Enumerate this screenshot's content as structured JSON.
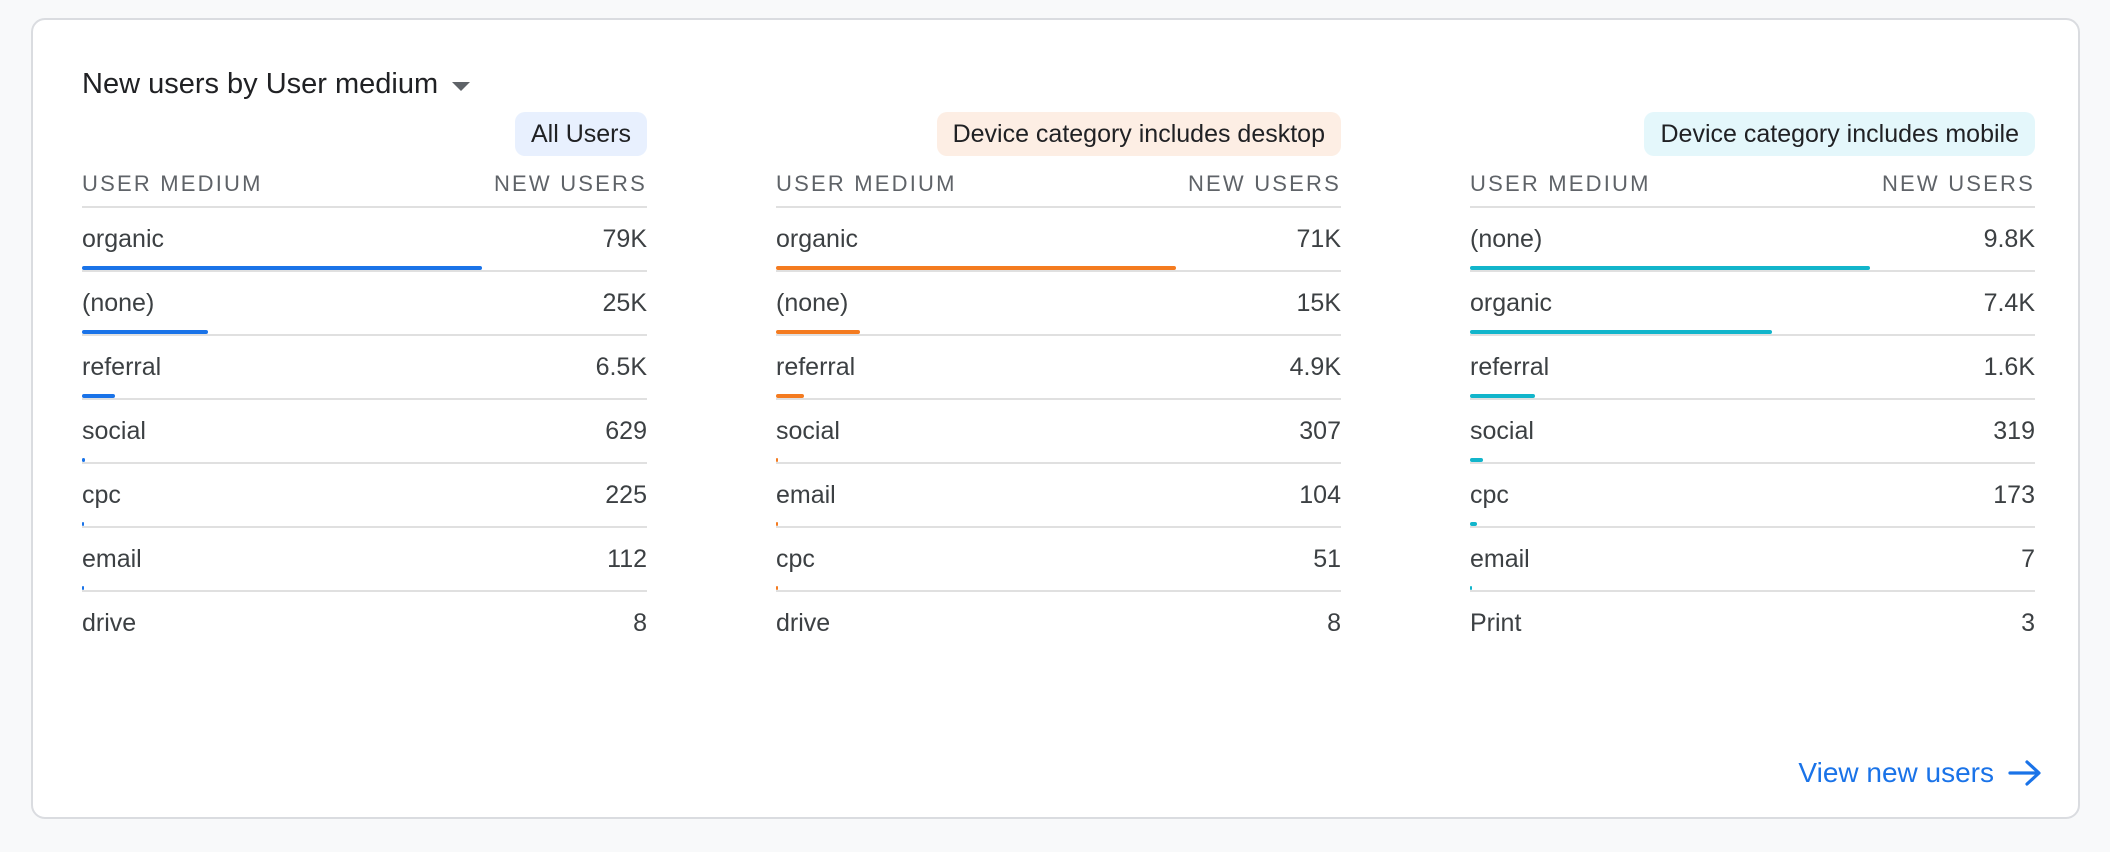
{
  "card": {
    "title": "New users by User medium",
    "view_link": "View new users"
  },
  "columns": {
    "dimension": "USER MEDIUM",
    "metric": "NEW USERS"
  },
  "colors": {
    "all_users": "#1a73e8",
    "desktop": "#f47b20",
    "mobile": "#12b5cb",
    "chip_all_users_bg": "#e8f0fe",
    "chip_desktop_bg": "#fdeee4",
    "chip_mobile_bg": "#e4f7fb"
  },
  "panels": [
    {
      "segment": "All Users",
      "color_key": "all_users",
      "rows": [
        {
          "label": "organic",
          "value": "79K",
          "fraction": 1.0
        },
        {
          "label": "(none)",
          "value": "25K",
          "fraction": 0.316
        },
        {
          "label": "referral",
          "value": "6.5K",
          "fraction": 0.082
        },
        {
          "label": "social",
          "value": "629",
          "fraction": 0.008
        },
        {
          "label": "cpc",
          "value": "225",
          "fraction": 0.003
        },
        {
          "label": "email",
          "value": "112",
          "fraction": 0.0014
        },
        {
          "label": "drive",
          "value": "8",
          "fraction": 0.0001
        }
      ]
    },
    {
      "segment": "Device category includes desktop",
      "color_key": "desktop",
      "rows": [
        {
          "label": "organic",
          "value": "71K",
          "fraction": 1.0
        },
        {
          "label": "(none)",
          "value": "15K",
          "fraction": 0.211
        },
        {
          "label": "referral",
          "value": "4.9K",
          "fraction": 0.069
        },
        {
          "label": "social",
          "value": "307",
          "fraction": 0.0043
        },
        {
          "label": "email",
          "value": "104",
          "fraction": 0.0015
        },
        {
          "label": "cpc",
          "value": "51",
          "fraction": 0.0007
        },
        {
          "label": "drive",
          "value": "8",
          "fraction": 0.0001
        }
      ]
    },
    {
      "segment": "Device category includes mobile",
      "color_key": "mobile",
      "rows": [
        {
          "label": "(none)",
          "value": "9.8K",
          "fraction": 1.0
        },
        {
          "label": "organic",
          "value": "7.4K",
          "fraction": 0.755
        },
        {
          "label": "referral",
          "value": "1.6K",
          "fraction": 0.163
        },
        {
          "label": "social",
          "value": "319",
          "fraction": 0.033
        },
        {
          "label": "cpc",
          "value": "173",
          "fraction": 0.018
        },
        {
          "label": "email",
          "value": "7",
          "fraction": 0.0007
        },
        {
          "label": "Print",
          "value": "3",
          "fraction": 0.0003
        }
      ]
    }
  ]
}
